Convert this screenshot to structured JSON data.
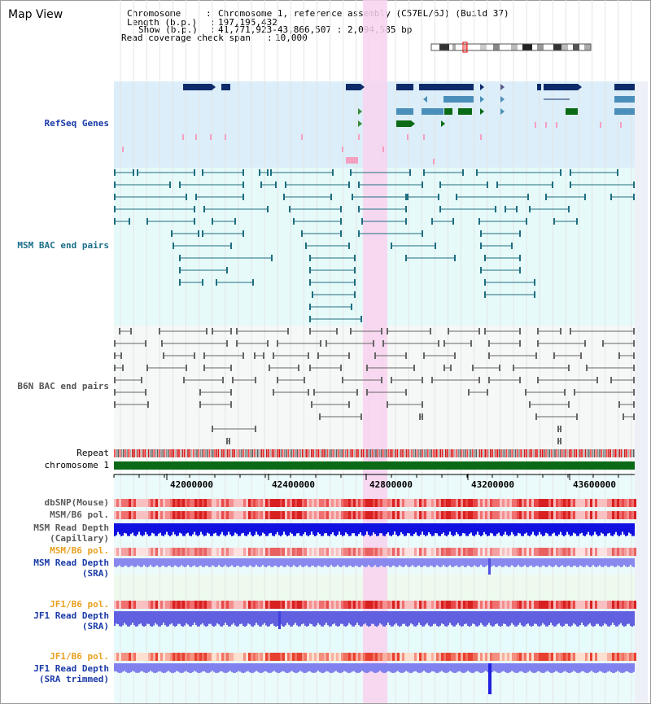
{
  "title": "Map View",
  "header": {
    "chromosome_key": "Chromosome",
    "chromosome_val": "Chromosome 1, reference assembly (C57BL/6J) (Build 37)",
    "length_key": "Length (b.p.)",
    "length_val": "197,195,432",
    "show_key": "Show (b.p.)",
    "show_val": "41,771,923-43,866,507 : 2,094,585 bp",
    "coverage_key": "Read coverage check span",
    "coverage_val": "10,000"
  },
  "tracks": {
    "refseq": "RefSeq Genes",
    "msm_bac": "MSM BAC end pairs",
    "b6n_bac": "B6N BAC end pairs",
    "repeat": "Repeat",
    "chromosome": "chromosome 1",
    "dbsnp": "dbSNP(Mouse)",
    "msm_b6_pol": "MSM/B6 pol.",
    "msm_depth_cap_1": "MSM Read Depth",
    "msm_depth_cap_2": "(Capillary)",
    "msm_b6_pol2": "MSM/B6 pol.",
    "msm_depth_sra_1": "MSM Read Depth",
    "msm_depth_sra_2": "(SRA)",
    "jf1_pol": "JF1/B6 pol.",
    "jf1_depth_sra_1": "JF1 Read Depth",
    "jf1_depth_sra_2": "(SRA)",
    "jf1_pol2": "JF1/B6 pol.",
    "jf1_depth_trim_1": "JF1 Read Depth",
    "jf1_depth_trim_2": "(SRA trimmed)"
  },
  "ruler": {
    "ticks": [
      "42000000",
      "42400000",
      "42800000",
      "43200000",
      "43600000"
    ]
  },
  "colors": {
    "refseq_bg": "#dbeef9",
    "msm_bg": "#e6fafa",
    "b6n_bg": "#f6f7f7",
    "highlight": "#f8d2ef",
    "navy": "#0d2a6a",
    "steel": "#4a8fba",
    "green": "#0a6a16",
    "teal": "#1e6e80",
    "gray": "#666666",
    "chromosome": "#0a6a16"
  }
}
